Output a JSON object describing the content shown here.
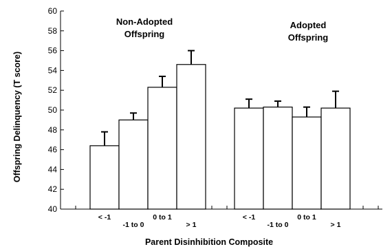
{
  "chart_data": {
    "type": "bar",
    "title": "",
    "xlabel": "Parent Disinhibition Composite",
    "ylabel": "Offspring Delinquency (T score)",
    "ylim": [
      40,
      60
    ],
    "yticks": [
      "40",
      "42",
      "44",
      "46",
      "48",
      "50",
      "52",
      "54",
      "56",
      "58",
      "60"
    ],
    "grid": false,
    "groups": [
      {
        "title_lines": [
          "Non-Adopted",
          "Offspring"
        ],
        "categories": [
          "< -1",
          "-1 to 0",
          "0 to 1",
          "> 1"
        ],
        "values": [
          46.4,
          49.0,
          52.3,
          54.6
        ],
        "errors": [
          1.4,
          0.7,
          1.1,
          1.4
        ]
      },
      {
        "title_lines": [
          "Adopted",
          "Offspring"
        ],
        "categories": [
          "< -1",
          "-1 to 0",
          "0 to 1",
          "> 1"
        ],
        "values": [
          50.2,
          50.3,
          49.3,
          50.2
        ],
        "errors": [
          0.9,
          0.6,
          1.0,
          1.7
        ]
      }
    ]
  }
}
